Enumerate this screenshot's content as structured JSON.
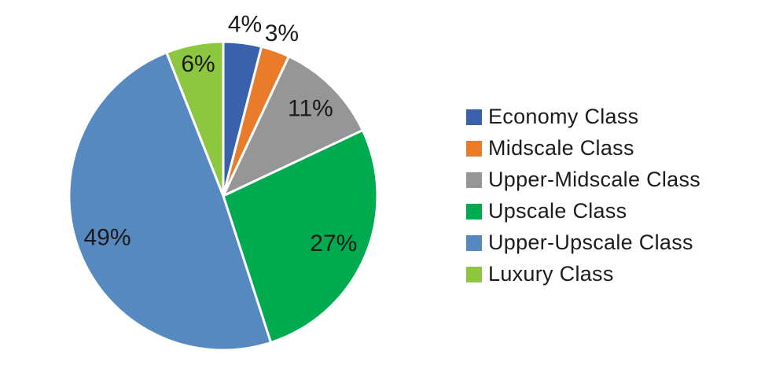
{
  "chart_data": {
    "type": "pie",
    "slices": [
      {
        "label": "Economy Class",
        "value": 4,
        "display": "4%",
        "color": "#3A61AB"
      },
      {
        "label": "Midscale Class",
        "value": 3,
        "display": "3%",
        "color": "#E87C2B"
      },
      {
        "label": "Upper-Midscale Class",
        "value": 11,
        "display": "11%",
        "color": "#969696"
      },
      {
        "label": "Upscale Class",
        "value": 27,
        "display": "27%",
        "color": "#00AB50"
      },
      {
        "label": "Upper-Upscale Class",
        "value": 49,
        "display": "49%",
        "color": "#5589C0"
      },
      {
        "label": "Luxury Class",
        "value": 6,
        "display": "6%",
        "color": "#8DC63F"
      }
    ],
    "legend_position": "right",
    "legend_entries": [
      "Economy Class",
      "Midscale Class",
      "Upper-Midscale Class",
      "Upscale Class",
      "Upper-Upscale Class",
      "Luxury Class"
    ],
    "start_angle_deg": 0,
    "direction": "clockwise",
    "background": "#FFFFFF",
    "slice_border_color": "#FFFFFF",
    "label_color": "#1A1A1A",
    "label_placement": [
      "outside",
      "outside",
      "inside",
      "inside",
      "inside",
      "inside"
    ],
    "label_radius_factor": [
      1.12,
      1.12,
      0.8,
      0.78,
      0.8,
      0.87
    ]
  }
}
